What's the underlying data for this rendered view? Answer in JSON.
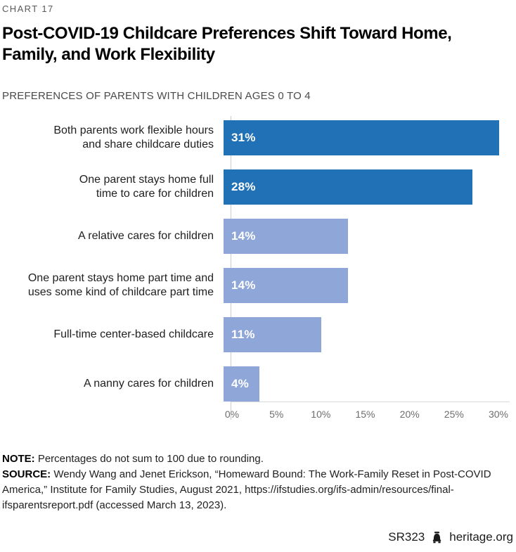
{
  "header": {
    "chart_number": "CHART 17",
    "title": "Post-COVID-19 Childcare Preferences Shift Toward Home,\nFamily, and Work Flexibility",
    "subtitle": "PREFERENCES OF PARENTS WITH CHILDREN AGES 0 TO 4"
  },
  "chart_data": {
    "type": "bar",
    "orientation": "horizontal",
    "categories": [
      "Both parents work flexible hours\nand share childcare duties",
      "One parent stays home full\ntime to care for children",
      "A relative cares for children",
      "One parent stays home part time and\nuses some kind of childcare part time",
      "Full-time center-based childcare",
      "A nanny cares for children"
    ],
    "values": [
      31,
      28,
      14,
      14,
      11,
      4
    ],
    "value_labels": [
      "31%",
      "28%",
      "14%",
      "14%",
      "11%",
      "4%"
    ],
    "bar_colors": [
      "#2171B7",
      "#2171B7",
      "#8FA6D8",
      "#8FA6D8",
      "#8FA6D8",
      "#8FA6D8"
    ],
    "highlight_color": "#2171B7",
    "muted_color": "#8FA6D8",
    "xlim": [
      0,
      30
    ],
    "x_tick_values": [
      0,
      5,
      10,
      15,
      20,
      25,
      30
    ],
    "x_tick_labels": [
      "0%",
      "5%",
      "10%",
      "15%",
      "20%",
      "25%",
      "30%"
    ],
    "grid": "off",
    "legend": "none",
    "value_label_position": "inside-left",
    "value_label_color": "#FFFFFF"
  },
  "footnotes": {
    "note_label": "NOTE:",
    "note_text": " Percentages do not sum to 100 due to rounding.",
    "source_label": "SOURCE:",
    "source_text": " Wendy Wang and Jenet Erickson, “Homeward Bound: The Work-Family Reset in Post-COVID America,” Institute for Family Studies, August 2021, https://ifstudies.org/ifs-admin/resources/final-ifsparentsreport.pdf (accessed March 13, 2023)."
  },
  "footer": {
    "report_id": "SR323",
    "site": "heritage.org"
  }
}
